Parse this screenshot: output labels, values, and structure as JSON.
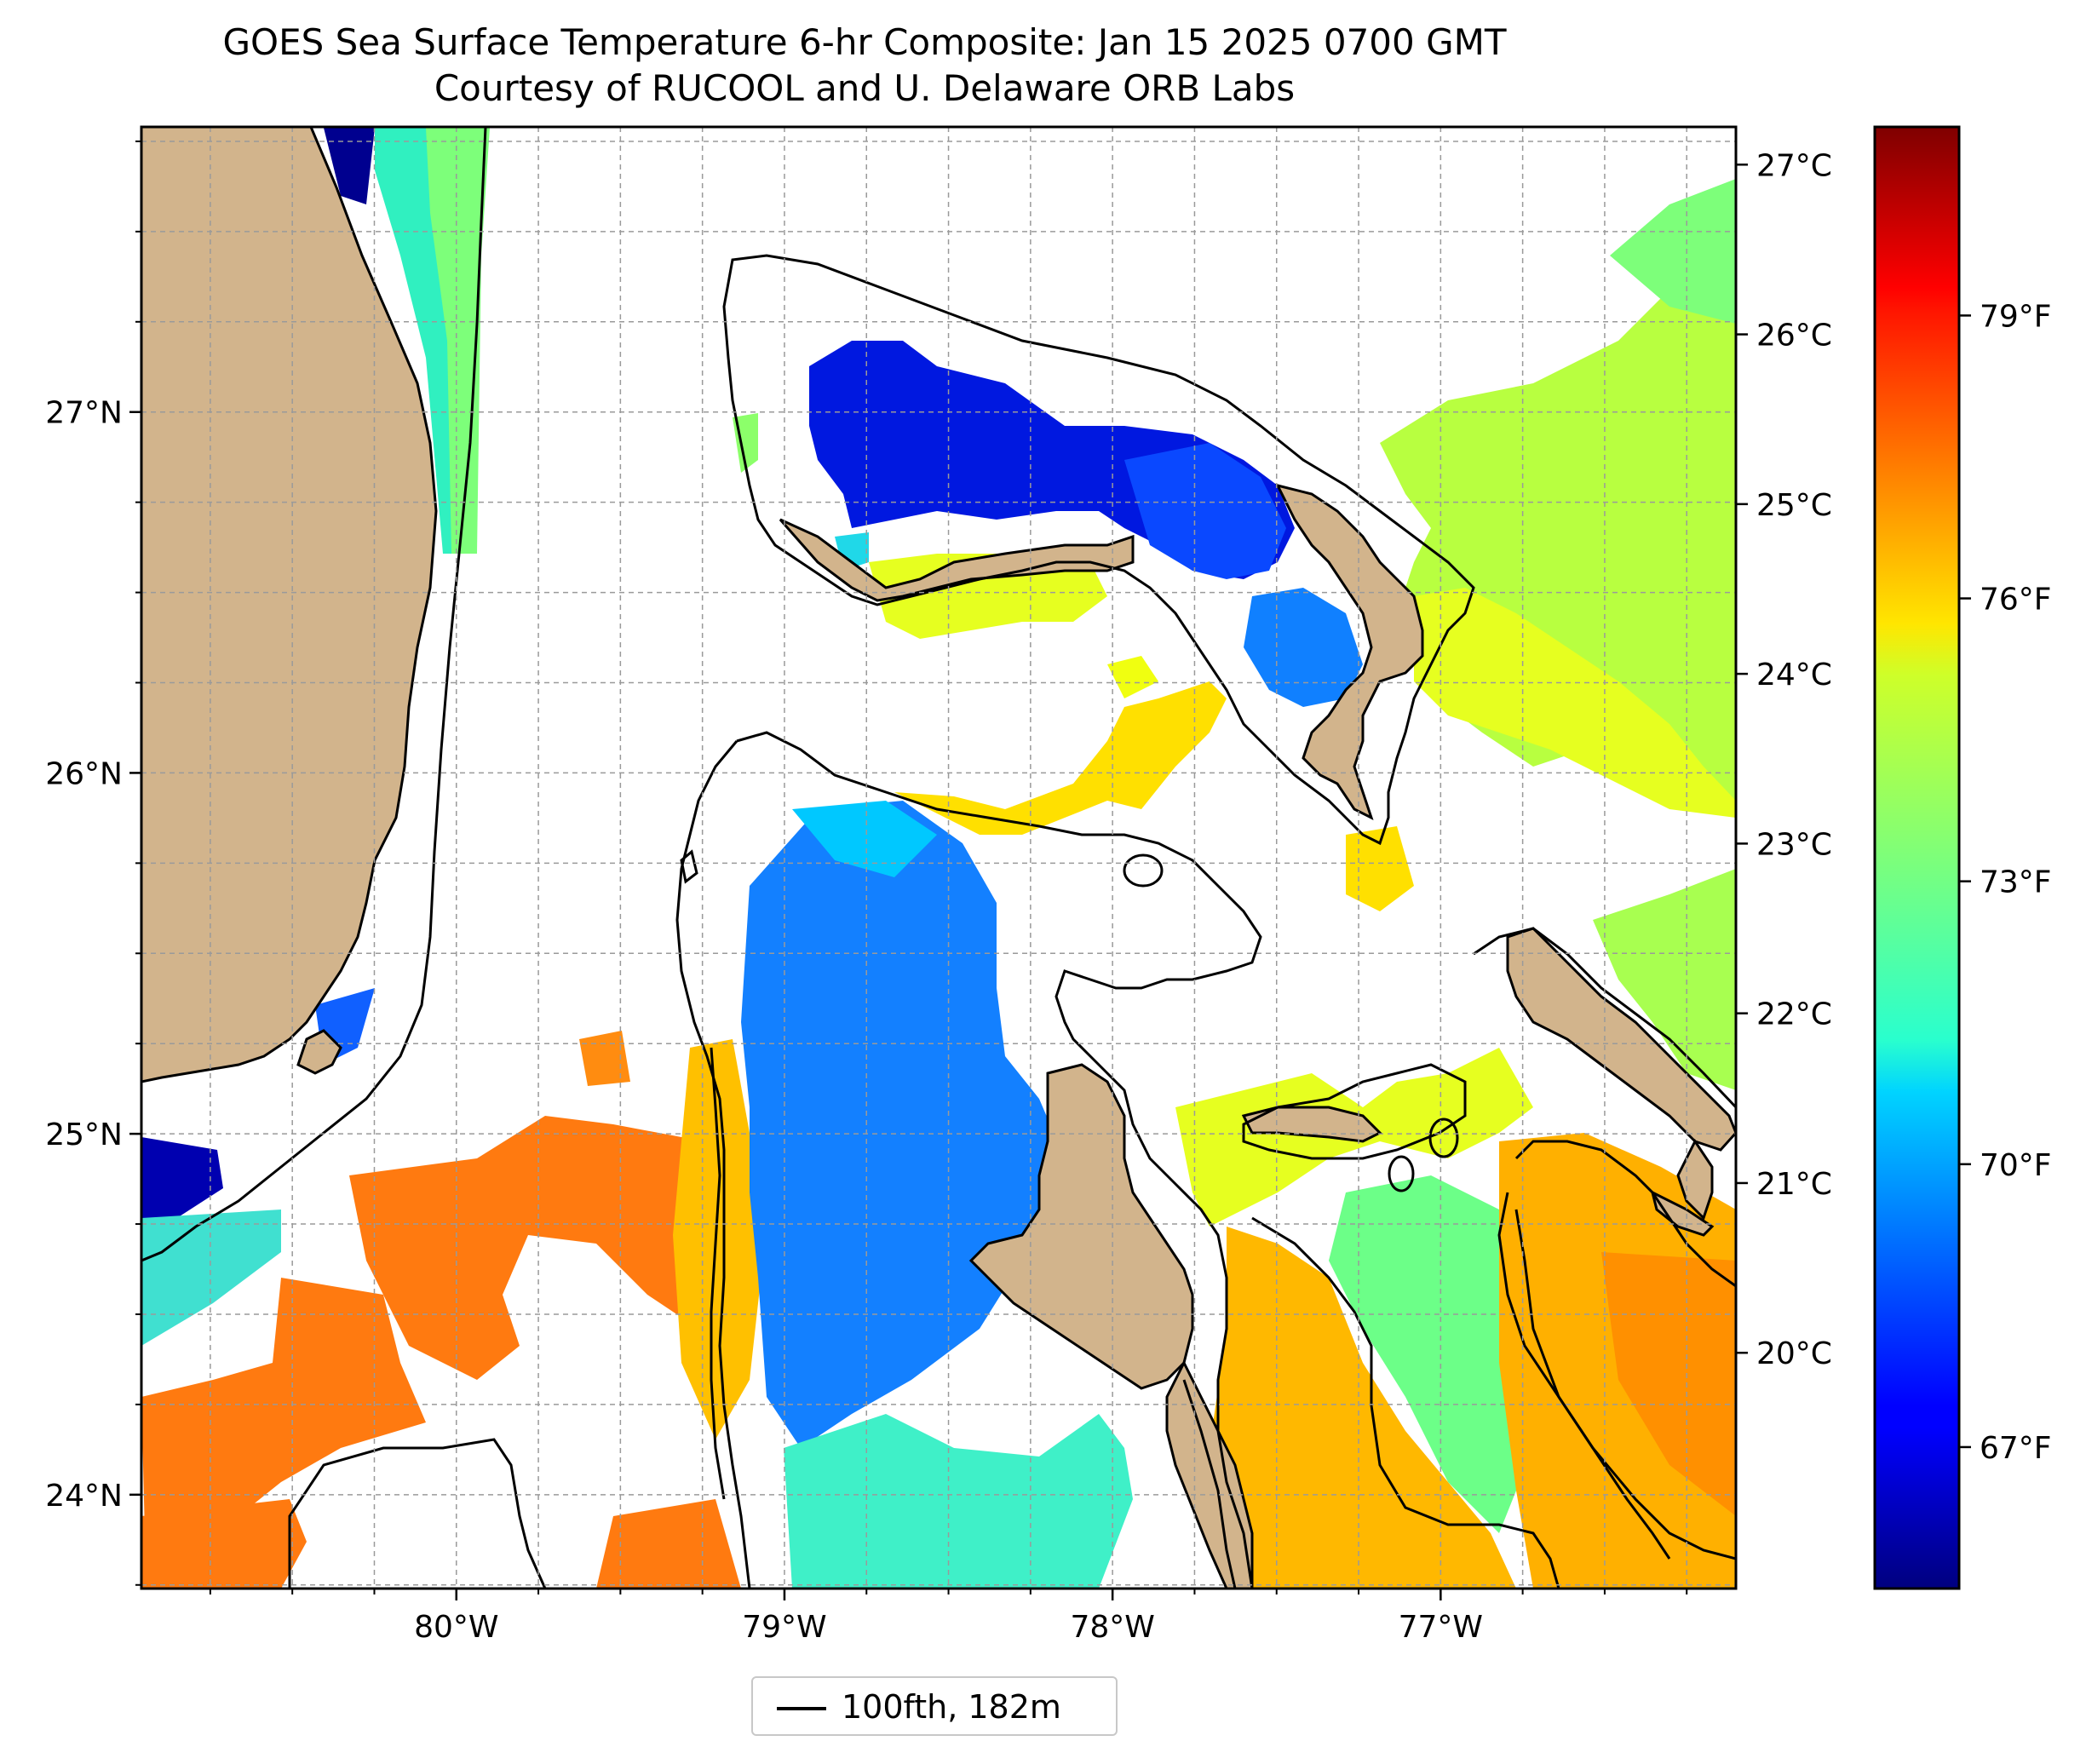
{
  "title": "GOES Sea Surface Temperature 6-hr Composite: Jan 15 2025 0700 GMT",
  "subtitle": "Courtesy of RUCOOL and U. Delaware ORB Labs",
  "map": {
    "lon_range": [
      -80.96,
      -76.1
    ],
    "lat_range": [
      23.74,
      27.79
    ],
    "gridlines": true,
    "lon_ticks": [
      {
        "value": -80,
        "label": "80°W"
      },
      {
        "value": -79,
        "label": "79°W"
      },
      {
        "value": -78,
        "label": "78°W"
      },
      {
        "value": -77,
        "label": "77°W"
      }
    ],
    "lat_ticks": [
      {
        "value": 27,
        "label": "27°N"
      },
      {
        "value": 26,
        "label": "26°N"
      },
      {
        "value": 25,
        "label": "25°N"
      },
      {
        "value": 24,
        "label": "24°N"
      }
    ],
    "land_color": "#d2b48c",
    "contour_color": "#000000"
  },
  "colorbar": {
    "colormap": "jet",
    "range_f": [
      65.5,
      81.0
    ],
    "celsius_ticks": [
      {
        "value": 27,
        "label": "27°C"
      },
      {
        "value": 26,
        "label": "26°C"
      },
      {
        "value": 25,
        "label": "25°C"
      },
      {
        "value": 24,
        "label": "24°C"
      },
      {
        "value": 23,
        "label": "23°C"
      },
      {
        "value": 22,
        "label": "22°C"
      },
      {
        "value": 21,
        "label": "21°C"
      },
      {
        "value": 20,
        "label": "20°C"
      }
    ],
    "fahrenheit_ticks": [
      {
        "value": 79,
        "label": "79°F"
      },
      {
        "value": 76,
        "label": "76°F"
      },
      {
        "value": 73,
        "label": "73°F"
      },
      {
        "value": 70,
        "label": "70°F"
      },
      {
        "value": 67,
        "label": "67°F"
      }
    ]
  },
  "legend": {
    "label": "100fth, 182m",
    "placement": "bottom-center"
  }
}
